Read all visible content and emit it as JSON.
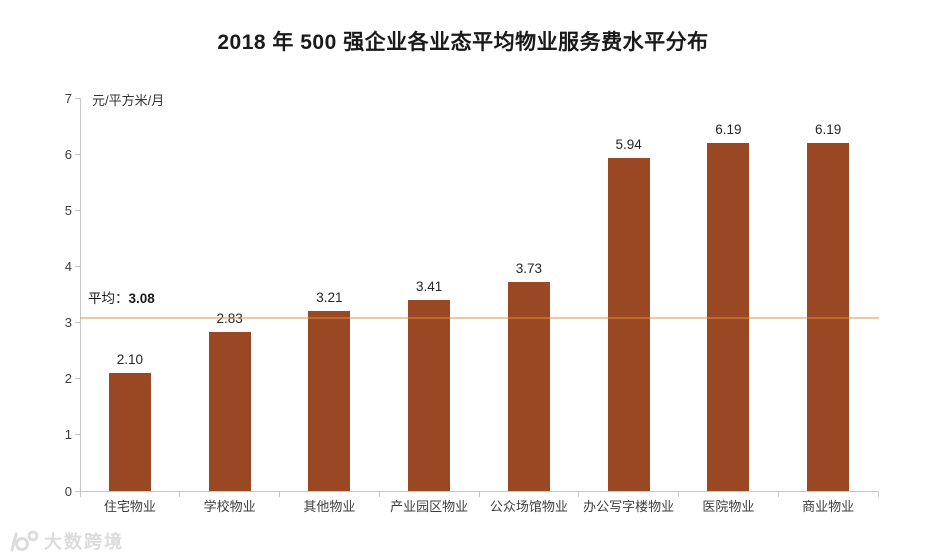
{
  "title": "2018 年 500 强企业各业态平均物业服务费水平分布",
  "unit_label": "元/平方米/月",
  "average_annotation": {
    "label": "平均：",
    "value": "3.08"
  },
  "watermark": {
    "text": "大数跨境",
    "logo": "k100-logo"
  },
  "colors": {
    "bar": "#9A4724",
    "average_line": "rgba(230,145,60,0.5)",
    "axis": "#c6c6c6",
    "text": "#262626",
    "watermark": "#dcdcdc"
  },
  "chart_data": {
    "type": "bar",
    "title": "2018 年 500 强企业各业态平均物业服务费水平分布",
    "categories": [
      "住宅物业",
      "学校物业",
      "其他物业",
      "产业园区物业",
      "公众场馆物业",
      "办公写字楼物业",
      "医院物业",
      "商业物业"
    ],
    "values": [
      2.1,
      2.83,
      3.21,
      3.41,
      3.73,
      5.94,
      6.19,
      6.19
    ],
    "value_labels": [
      "2.10",
      "2.83",
      "3.21",
      "3.41",
      "3.73",
      "5.94",
      "6.19",
      "6.19"
    ],
    "average": 3.08,
    "xlabel": "",
    "ylabel": "元/平方米/月",
    "ylim": [
      0,
      7
    ],
    "yticks": [
      0,
      1,
      2,
      3,
      4,
      5,
      6,
      7
    ],
    "grid": false,
    "legend": false
  }
}
